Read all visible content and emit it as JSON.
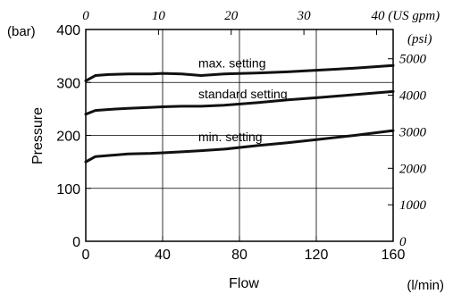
{
  "chart_data": {
    "type": "line",
    "title": "",
    "xlabel": "Flow",
    "xunit": "(l/min)",
    "ylabel": "Pressure",
    "yunit": "(bar)",
    "xlim": [
      0,
      160
    ],
    "ylim": [
      0,
      400
    ],
    "x_ticks": [
      "0",
      "40",
      "80",
      "120",
      "160"
    ],
    "y_ticks": [
      "0",
      "100",
      "200",
      "300",
      "400"
    ],
    "top_axis": {
      "ticks": [
        "0",
        "10",
        "20",
        "30",
        "40 (US gpm)"
      ],
      "tick_values_lpm": [
        0,
        37.85,
        75.7,
        113.55,
        151.4
      ]
    },
    "right_axis": {
      "unit": "(psi)",
      "ticks": [
        "0",
        "1000",
        "2000",
        "3000",
        "4000",
        "5000"
      ],
      "tick_values_bar": [
        0,
        68.95,
        137.9,
        206.84,
        275.79,
        344.74
      ]
    },
    "grid": true,
    "series": [
      {
        "name": "max. setting",
        "x": [
          0,
          5,
          12,
          22,
          34,
          40,
          50,
          60,
          72,
          90,
          105,
          120,
          140,
          160
        ],
        "y": [
          303,
          313,
          315,
          316,
          316,
          317,
          316,
          313,
          316,
          318,
          320,
          323,
          327,
          332
        ]
      },
      {
        "name": "standard setting",
        "x": [
          0,
          5,
          12,
          22,
          34,
          40,
          50,
          60,
          72,
          90,
          105,
          120,
          140,
          160
        ],
        "y": [
          240,
          247,
          249,
          251,
          253,
          254,
          255,
          255,
          257,
          262,
          267,
          271,
          277,
          283
        ]
      },
      {
        "name": "min. setting",
        "x": [
          0,
          5,
          12,
          22,
          34,
          40,
          50,
          60,
          72,
          90,
          105,
          120,
          140,
          160
        ],
        "y": [
          150,
          160,
          162,
          165,
          166,
          167,
          169,
          171,
          174,
          181,
          186,
          192,
          200,
          209
        ]
      }
    ]
  }
}
